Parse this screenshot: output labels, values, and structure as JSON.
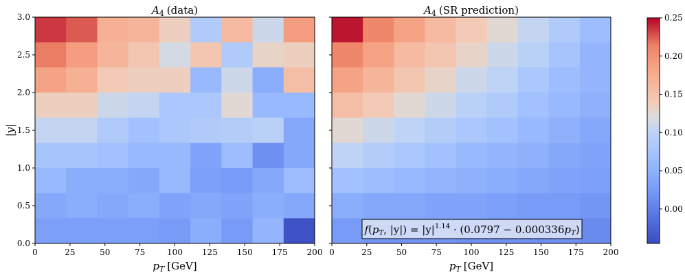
{
  "chart_data": [
    {
      "type": "heatmap",
      "title": "A_4 (data)",
      "title_symbol": "A",
      "title_subscript": "4",
      "title_suffix": "(data)",
      "xlabel": "p_T [GeV]",
      "xlabel_symbol": "p",
      "xlabel_subscript": "T",
      "xlabel_suffix": "[GeV]",
      "ylabel": "|y|",
      "xlim": [
        0,
        200
      ],
      "ylim": [
        0.0,
        3.0
      ],
      "x_ticks": [
        "0",
        "25",
        "50",
        "75",
        "100",
        "125",
        "150",
        "175",
        "200"
      ],
      "y_ticks": [
        "0.0",
        "0.5",
        "1.0",
        "1.5",
        "2.0",
        "2.5",
        "3.0"
      ],
      "x_bin_edges": [
        0,
        22.22,
        44.44,
        66.67,
        88.89,
        111.11,
        133.33,
        155.56,
        177.78,
        200
      ],
      "y_bin_edges": [
        0,
        0.333,
        0.667,
        1.0,
        1.333,
        1.667,
        2.0,
        2.333,
        2.667,
        3.0
      ],
      "values_rows_top_to_bottom": [
        [
          0.235,
          0.225,
          0.17,
          0.165,
          0.135,
          0.085,
          0.16,
          0.11,
          0.19
        ],
        [
          0.215,
          0.19,
          0.165,
          0.145,
          0.115,
          0.145,
          0.085,
          0.13,
          0.135
        ],
        [
          0.185,
          0.17,
          0.14,
          0.135,
          0.135,
          0.06,
          0.11,
          0.045,
          0.155
        ],
        [
          0.135,
          0.135,
          0.11,
          0.105,
          0.08,
          0.08,
          0.125,
          0.06,
          0.06
        ],
        [
          0.105,
          0.105,
          0.085,
          0.07,
          0.08,
          0.085,
          0.09,
          0.095,
          0.04
        ],
        [
          0.075,
          0.075,
          0.07,
          0.06,
          0.06,
          0.035,
          0.065,
          0.015,
          0.04
        ],
        [
          0.06,
          0.045,
          0.045,
          0.04,
          0.06,
          0.03,
          0.025,
          0.04,
          0.065
        ],
        [
          0.04,
          0.045,
          0.04,
          0.045,
          0.035,
          0.04,
          0.035,
          0.045,
          0.04
        ],
        [
          0.03,
          0.03,
          0.03,
          0.03,
          0.025,
          0.045,
          0.025,
          0.055,
          -0.04
        ]
      ]
    },
    {
      "type": "heatmap",
      "title": "A_4 (SR prediction)",
      "title_symbol": "A",
      "title_subscript": "4",
      "title_suffix": "(SR prediction)",
      "xlabel": "p_T [GeV]",
      "xlabel_symbol": "p",
      "xlabel_subscript": "T",
      "xlabel_suffix": "[GeV]",
      "xlim": [
        0,
        200
      ],
      "ylim": [
        0.0,
        3.0
      ],
      "x_ticks": [
        "0",
        "25",
        "50",
        "75",
        "100",
        "125",
        "150",
        "175",
        "200"
      ],
      "x_bin_edges": [
        0,
        22.22,
        44.44,
        66.67,
        88.89,
        111.11,
        133.33,
        155.56,
        177.78,
        200
      ],
      "y_bin_edges": [
        0,
        0.333,
        0.667,
        1.0,
        1.333,
        1.667,
        2.0,
        2.333,
        2.667,
        3.0
      ],
      "values_rows_top_to_bottom": [
        [
          0.245,
          0.21,
          0.185,
          0.16,
          0.14,
          0.125,
          0.105,
          0.085,
          0.065
        ],
        [
          0.21,
          0.185,
          0.16,
          0.145,
          0.13,
          0.11,
          0.095,
          0.075,
          0.055
        ],
        [
          0.185,
          0.165,
          0.145,
          0.13,
          0.11,
          0.1,
          0.08,
          0.065,
          0.055
        ],
        [
          0.155,
          0.14,
          0.125,
          0.11,
          0.095,
          0.085,
          0.07,
          0.06,
          0.05
        ],
        [
          0.125,
          0.11,
          0.1,
          0.09,
          0.08,
          0.07,
          0.06,
          0.05,
          0.04
        ],
        [
          0.1,
          0.09,
          0.08,
          0.07,
          0.06,
          0.055,
          0.05,
          0.04,
          0.035
        ],
        [
          0.07,
          0.065,
          0.06,
          0.055,
          0.05,
          0.045,
          0.04,
          0.035,
          0.03
        ],
        [
          0.045,
          0.04,
          0.04,
          0.035,
          0.035,
          0.03,
          0.025,
          0.025,
          0.02
        ],
        [
          0.025,
          0.02,
          0.02,
          0.02,
          0.015,
          0.015,
          0.015,
          0.015,
          0.01
        ]
      ],
      "annotation": {
        "lhs": "f(p_T, |y|) = |y|",
        "exponent": "1.14",
        "rhs": "· (0.0797 − 0.000336p_T)",
        "fn": "f",
        "open_paren": "(",
        "var_p": "p",
        "var_sub": "T",
        "comma_abs": ", |y|) = |y|",
        "mid": " · (0.0797 − 0.000336",
        "end_p": "p",
        "end_sub": "T",
        "close_paren": ")"
      }
    }
  ],
  "colorbar": {
    "colormap": "coolwarm",
    "vmin": -0.045,
    "vmax": 0.25,
    "ticks": [
      "0.00",
      "0.05",
      "0.10",
      "0.15",
      "0.20",
      "0.25"
    ],
    "tick_values": [
      0.0,
      0.05,
      0.1,
      0.15,
      0.2,
      0.25
    ]
  }
}
